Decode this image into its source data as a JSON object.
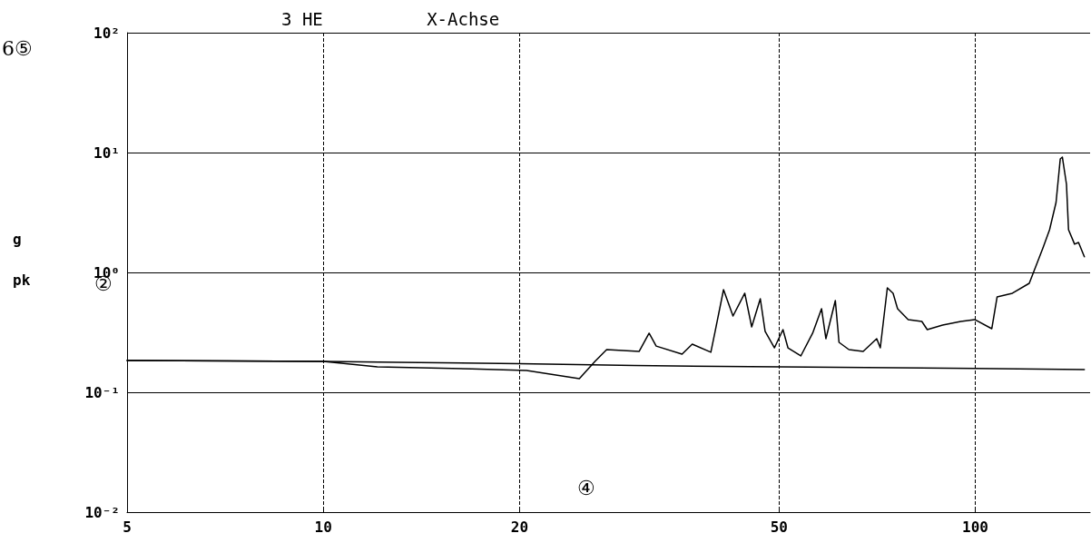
{
  "chart_data": {
    "type": "line",
    "title": "3 HE          X-Achse",
    "ylabel": "g pk",
    "annotations": [
      "6⑤",
      "②",
      "④"
    ],
    "log": "xy",
    "grid": true,
    "marker": "none",
    "line_style": "solid",
    "xlim": [
      5,
      150
    ],
    "xticks": [
      5,
      10,
      20,
      50,
      100
    ],
    "ylim": [
      0.01,
      100
    ],
    "yticks": [
      {
        "value": 0.01,
        "label": "10⁻²"
      },
      {
        "value": 0.1,
        "label": "10⁻¹"
      },
      {
        "value": 1,
        "label": "10⁰"
      },
      {
        "value": 10,
        "label": "10¹"
      },
      {
        "value": 100,
        "label": "10²"
      }
    ],
    "series": [
      {
        "color": "#000000",
        "x": [
          5,
          10,
          12.1,
          16.9,
          20.5,
          24.7,
          26.1,
          27.2,
          30.5,
          31.6,
          32.4,
          35.5,
          36.8,
          39.3,
          39.9,
          41.1,
          42.5,
          44.3,
          45.4,
          46.8,
          47.6,
          49.2,
          50.7,
          51.6,
          54,
          56.3,
          58.1,
          59,
          61,
          61.8,
          64,
          67.3,
          70.6,
          71.5,
          73.3,
          74.8,
          76,
          78.9,
          82.8,
          84.4,
          89.1,
          95,
          99.8,
          106,
          108,
          114,
          121,
          127,
          130,
          133,
          135,
          136,
          138,
          139,
          142,
          144,
          147
        ],
        "values": [
          0.184,
          0.181,
          0.163,
          0.157,
          0.152,
          0.13,
          0.181,
          0.227,
          0.219,
          0.311,
          0.243,
          0.208,
          0.252,
          0.216,
          0.322,
          0.718,
          0.433,
          0.67,
          0.351,
          0.603,
          0.322,
          0.235,
          0.333,
          0.235,
          0.201,
          0.311,
          0.498,
          0.28,
          0.582,
          0.261,
          0.227,
          0.219,
          0.28,
          0.235,
          0.743,
          0.67,
          0.498,
          0.404,
          0.39,
          0.333,
          0.364,
          0.39,
          0.404,
          0.339,
          0.624,
          0.67,
          0.811,
          1.6,
          2.27,
          3.83,
          8.85,
          9.17,
          5.43,
          2.27,
          1.72,
          1.78,
          1.35
        ]
      },
      {
        "color": "#000000",
        "x": [
          5,
          10,
          13,
          20,
          30,
          50,
          100,
          147
        ],
        "values": [
          0.184,
          0.181,
          0.178,
          0.173,
          0.167,
          0.163,
          0.158,
          0.155
        ]
      }
    ]
  }
}
